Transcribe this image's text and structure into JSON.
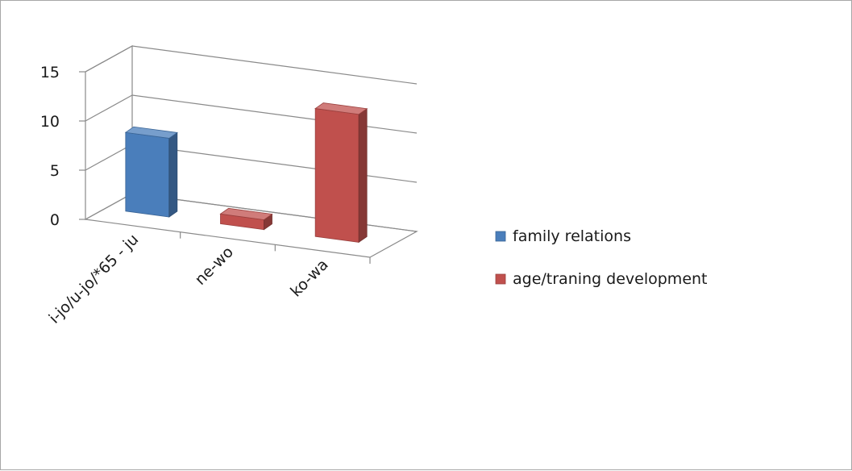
{
  "chart_data": {
    "type": "bar",
    "style": "3d-column",
    "categories": [
      "i-jo/u-jo/*65 - ju",
      "ne-wo",
      "ko-wa"
    ],
    "series": [
      {
        "name": "family relations",
        "color": "#4a7ebb",
        "values": [
          8,
          0,
          0
        ]
      },
      {
        "name": "age/traning development",
        "color": "#c0504d",
        "values": [
          0,
          1,
          13
        ]
      }
    ],
    "yticks": [
      "0",
      "5",
      "10",
      "15"
    ],
    "ylim": [
      0,
      15
    ],
    "grid": true,
    "legend_position": "right"
  }
}
